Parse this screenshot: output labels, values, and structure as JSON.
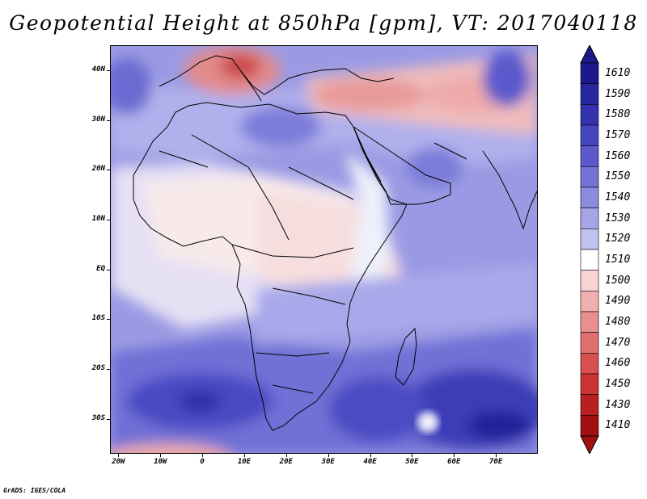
{
  "title": "Geopotential Height at 850hPa [gpm], VT: 2017040118",
  "footer": "GrADS: IGES/COLA",
  "axes": {
    "lat_labels": [
      "40N",
      "30N",
      "20N",
      "10N",
      "EQ",
      "10S",
      "20S",
      "30S"
    ],
    "lat_values": [
      40,
      30,
      20,
      10,
      0,
      -10,
      -20,
      -30
    ],
    "lon_labels": [
      "20W",
      "10W",
      "0",
      "10E",
      "20E",
      "30E",
      "40E",
      "50E",
      "60E",
      "70E"
    ],
    "lon_values": [
      -20,
      -10,
      0,
      10,
      20,
      30,
      40,
      50,
      60,
      70
    ],
    "lat_range": [
      -37,
      45
    ],
    "lon_range": [
      -22,
      80
    ]
  },
  "colorbar": {
    "labels": [
      "1610",
      "1590",
      "1580",
      "1570",
      "1560",
      "1550",
      "1540",
      "1530",
      "1520",
      "1510",
      "1500",
      "1490",
      "1480",
      "1470",
      "1460",
      "1450",
      "1430",
      "1410"
    ],
    "colors": [
      "#1a1a8c",
      "#26269e",
      "#3333b0",
      "#4545c0",
      "#5a5acc",
      "#7373d6",
      "#8c8cdf",
      "#a5a5e8",
      "#c2c2f0",
      "#ffffff",
      "#f7d3d3",
      "#f0b0b0",
      "#e89090",
      "#e07070",
      "#d95050",
      "#cc3333",
      "#b82020",
      "#a01010"
    ],
    "arrow_top": "#1a1a8c",
    "arrow_bottom": "#a01010"
  },
  "map_colors": {
    "ocean_base": "#8c8cdf",
    "deep_blue": "#3333b0",
    "mid_blue": "#6060cf",
    "light_blue": "#c2c2f0",
    "white": "#ffffff",
    "pink": "#f7d3d3",
    "red": "#d95050",
    "dark_red": "#b82020",
    "coast": "#000000"
  }
}
